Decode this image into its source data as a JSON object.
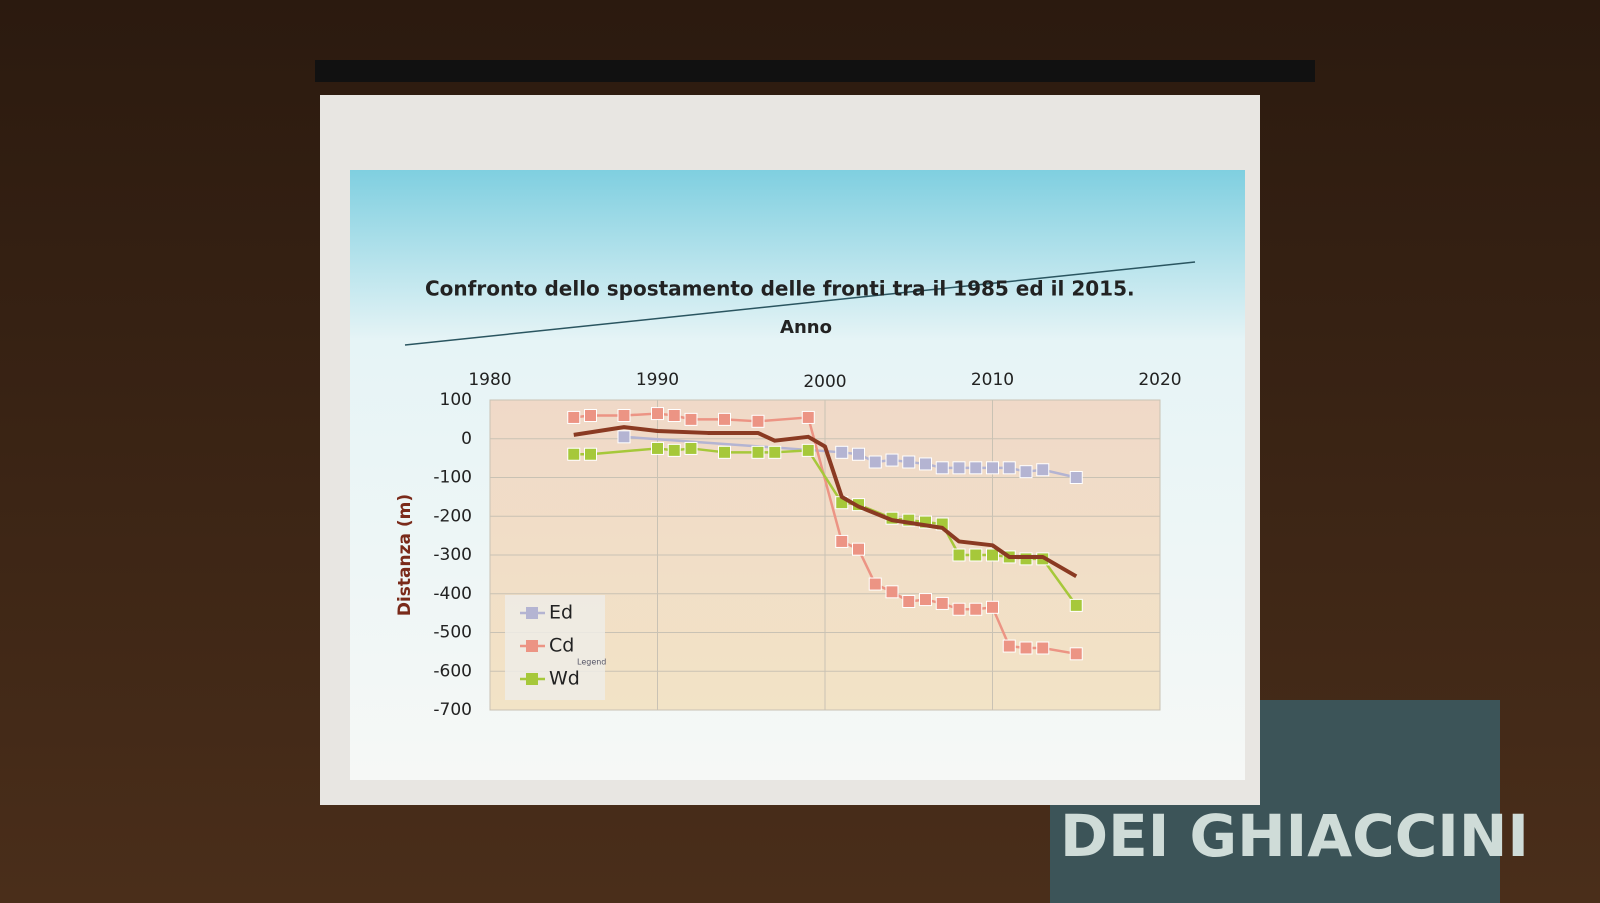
{
  "chart_data": {
    "type": "line",
    "title": "Confronto dello spostamento delle fronti tra il 1985 ed il 2015.",
    "x_label": "Anno",
    "y_label": "Distanza (m)",
    "xlim": [
      1980,
      2020
    ],
    "xticks": [
      1980,
      1990,
      2000,
      2010,
      2020
    ],
    "ylim": [
      -700,
      100
    ],
    "yticks": [
      100,
      0,
      -100,
      -200,
      -300,
      -400,
      -500,
      -600,
      -700
    ],
    "grid": true,
    "legend_title": "Legend",
    "legend_position": "lower left",
    "series": [
      {
        "name": "Ed",
        "color": "#b4b4d2",
        "x": [
          1988,
          2001,
          2002,
          2003,
          2004,
          2005,
          2006,
          2007,
          2008,
          2009,
          2010,
          2011,
          2012,
          2013,
          2015
        ],
        "values": [
          5,
          -35,
          -40,
          -60,
          -55,
          -60,
          -65,
          -75,
          -75,
          -75,
          -75,
          -75,
          -85,
          -80,
          -100
        ]
      },
      {
        "name": "Cd",
        "color": "#ec9484",
        "x": [
          1985,
          1986,
          1988,
          1990,
          1991,
          1992,
          1994,
          1996,
          1999,
          2001,
          2002,
          2003,
          2004,
          2005,
          2006,
          2007,
          2008,
          2009,
          2010,
          2011,
          2012,
          2013,
          2015
        ],
        "values": [
          55,
          60,
          60,
          65,
          60,
          50,
          50,
          45,
          55,
          -265,
          -285,
          -375,
          -395,
          -420,
          -415,
          -425,
          -440,
          -440,
          -435,
          -535,
          -540,
          -540,
          -555
        ]
      },
      {
        "name": "Wd",
        "color": "#a6c83a",
        "x": [
          1985,
          1986,
          1990,
          1991,
          1992,
          1994,
          1996,
          1997,
          1999,
          2001,
          2002,
          2004,
          2005,
          2006,
          2007,
          2008,
          2009,
          2010,
          2011,
          2012,
          2013,
          2015
        ],
        "values": [
          -40,
          -40,
          -25,
          -30,
          -25,
          -35,
          -35,
          -35,
          -30,
          -165,
          -170,
          -205,
          -210,
          -215,
          -220,
          -300,
          -300,
          -300,
          -305,
          -310,
          -310,
          -430
        ]
      }
    ],
    "trend": {
      "color": "#8a3a22",
      "x": [
        1985,
        1988,
        1990,
        1993,
        1996,
        1997,
        1999,
        2000,
        2001,
        2002,
        2004,
        2007,
        2008,
        2010,
        2011,
        2013,
        2015
      ],
      "values": [
        10,
        30,
        20,
        15,
        15,
        -5,
        5,
        -20,
        -150,
        -175,
        -210,
        -230,
        -265,
        -275,
        -305,
        -305,
        -355
      ]
    }
  },
  "background": {
    "banner": "DEI GHIACCINI"
  }
}
